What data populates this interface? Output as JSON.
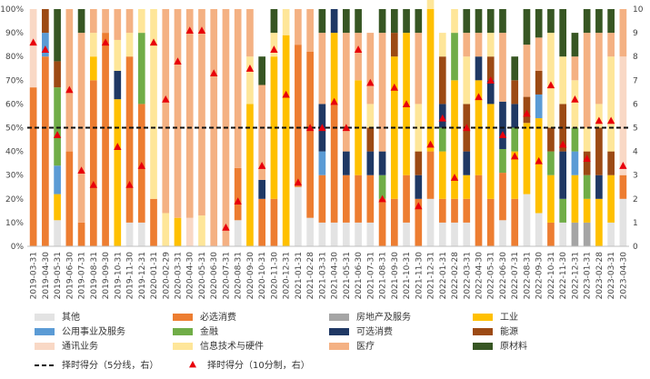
{
  "chart_data": {
    "type": "bar",
    "stacked": true,
    "percent": true,
    "y_left": {
      "min": 0,
      "max": 100,
      "unit": "%",
      "ticks": [
        "0%",
        "10%",
        "20%",
        "30%",
        "40%",
        "50%",
        "60%",
        "70%",
        "80%",
        "90%",
        "100%"
      ]
    },
    "y_right": {
      "min": 0,
      "max": 10,
      "ticks": [
        "0",
        "1",
        "2",
        "3",
        "4",
        "5",
        "6",
        "7",
        "8",
        "9",
        "10"
      ]
    },
    "categories": [
      "2019-03-31",
      "2019-04-30",
      "2019-05-31",
      "2019-06-30",
      "2019-07-31",
      "2019-08-31",
      "2019-09-30",
      "2019-10-31",
      "2019-11-30",
      "2019-12-31",
      "2020-01-31",
      "2020-02-29",
      "2020-03-31",
      "2020-04-30",
      "2020-05-31",
      "2020-06-30",
      "2020-07-31",
      "2020-08-31",
      "2020-09-30",
      "2020-10-31",
      "2020-11-30",
      "2020-12-31",
      "2021-01-31",
      "2021-02-28",
      "2021-03-31",
      "2021-04-30",
      "2021-05-31",
      "2021-06-30",
      "2021-07-31",
      "2021-08-31",
      "2021-09-30",
      "2021-10-31",
      "2021-11-30",
      "2021-12-31",
      "2022-01-31",
      "2022-02-28",
      "2022-03-31",
      "2022-04-30",
      "2022-05-31",
      "2022-06-30",
      "2022-07-31",
      "2022-08-31",
      "2022-09-30",
      "2022-10-31",
      "2022-11-30",
      "2022-12-31",
      "2023-01-31",
      "2023-02-28",
      "2023-03-31",
      "2023-04-30"
    ],
    "series": [
      {
        "name": "其他",
        "color": "#e3e3e3",
        "values": [
          0,
          0,
          11,
          0,
          0,
          0,
          0,
          0,
          10,
          10,
          0,
          0,
          0,
          0,
          0,
          0,
          0,
          11,
          0,
          0,
          0,
          0,
          25,
          12,
          10,
          10,
          10,
          10,
          10,
          0,
          0,
          10,
          0,
          20,
          10,
          10,
          10,
          0,
          0,
          11,
          0,
          22,
          14,
          0,
          10,
          0,
          0,
          0,
          10,
          20
        ]
      },
      {
        "name": "必选消费",
        "color": "#ed7d31",
        "values": [
          67,
          80,
          0,
          40,
          10,
          70,
          90,
          0,
          70,
          50,
          20,
          0,
          0,
          0,
          0,
          0,
          0,
          22,
          0,
          20,
          20,
          0,
          60,
          70,
          20,
          50,
          20,
          20,
          20,
          20,
          20,
          20,
          20,
          20,
          10,
          10,
          10,
          30,
          20,
          20,
          20,
          0,
          0,
          10,
          0,
          0,
          0,
          0,
          0,
          10
        ]
      },
      {
        "name": "房地产及服务",
        "color": "#a5a5a5",
        "values": [
          0,
          0,
          0,
          0,
          0,
          0,
          0,
          0,
          0,
          0,
          0,
          0,
          0,
          0,
          0,
          0,
          0,
          0,
          0,
          0,
          0,
          0,
          0,
          0,
          0,
          0,
          0,
          0,
          0,
          0,
          0,
          0,
          0,
          0,
          0,
          0,
          0,
          0,
          0,
          0,
          0,
          0,
          0,
          0,
          0,
          10,
          10,
          0,
          0,
          0
        ]
      },
      {
        "name": "工业",
        "color": "#ffc000",
        "values": [
          0,
          0,
          11,
          0,
          0,
          10,
          0,
          62,
          0,
          0,
          0,
          0,
          12,
          0,
          0,
          0,
          0,
          0,
          60,
          0,
          60,
          89,
          0,
          0,
          0,
          30,
          0,
          40,
          0,
          0,
          60,
          60,
          0,
          60,
          20,
          50,
          10,
          40,
          40,
          0,
          20,
          30,
          40,
          20,
          0,
          20,
          10,
          20,
          20,
          0
        ]
      },
      {
        "name": "公用事业及服务",
        "color": "#5b9bd5",
        "values": [
          0,
          10,
          12,
          0,
          0,
          0,
          0,
          0,
          0,
          0,
          0,
          0,
          0,
          0,
          0,
          0,
          0,
          0,
          0,
          0,
          0,
          0,
          0,
          0,
          10,
          0,
          0,
          0,
          0,
          0,
          0,
          0,
          0,
          0,
          0,
          0,
          0,
          0,
          0,
          0,
          0,
          0,
          10,
          0,
          0,
          10,
          0,
          0,
          0,
          0
        ]
      },
      {
        "name": "金融",
        "color": "#70ad47",
        "values": [
          0,
          0,
          33,
          0,
          0,
          0,
          0,
          0,
          0,
          30,
          0,
          0,
          0,
          0,
          0,
          0,
          0,
          0,
          0,
          0,
          0,
          0,
          0,
          0,
          0,
          0,
          0,
          0,
          0,
          10,
          0,
          0,
          0,
          0,
          10,
          20,
          0,
          0,
          0,
          10,
          10,
          0,
          0,
          10,
          10,
          10,
          10,
          0,
          0,
          0
        ]
      },
      {
        "name": "可选消费",
        "color": "#1f3864",
        "values": [
          0,
          0,
          0,
          0,
          0,
          0,
          0,
          12,
          0,
          0,
          0,
          0,
          0,
          0,
          0,
          0,
          0,
          0,
          0,
          8,
          0,
          0,
          0,
          0,
          20,
          10,
          10,
          0,
          10,
          10,
          0,
          0,
          10,
          0,
          10,
          0,
          10,
          10,
          10,
          20,
          10,
          0,
          0,
          0,
          20,
          0,
          0,
          10,
          0,
          0
        ]
      },
      {
        "name": "能源",
        "color": "#9c4a14",
        "values": [
          0,
          10,
          11,
          0,
          0,
          0,
          0,
          0,
          0,
          0,
          0,
          0,
          0,
          0,
          0,
          0,
          0,
          0,
          0,
          0,
          0,
          0,
          0,
          0,
          0,
          0,
          0,
          0,
          10,
          0,
          10,
          0,
          10,
          0,
          20,
          0,
          20,
          0,
          10,
          0,
          10,
          11,
          10,
          10,
          20,
          0,
          10,
          20,
          10,
          0
        ]
      },
      {
        "name": "通讯业务",
        "color": "#f9d8c5",
        "values": [
          33,
          0,
          0,
          0,
          0,
          0,
          0,
          0,
          0,
          0,
          0,
          0,
          0,
          12,
          0,
          0,
          0,
          0,
          0,
          0,
          0,
          0,
          0,
          0,
          0,
          0,
          0,
          0,
          0,
          0,
          0,
          0,
          0,
          0,
          0,
          0,
          0,
          0,
          0,
          0,
          0,
          0,
          0,
          0,
          0,
          0,
          0,
          0,
          0,
          50
        ]
      },
      {
        "name": "信息技术与硬件",
        "color": "#fee699",
        "values": [
          0,
          0,
          0,
          0,
          0,
          10,
          0,
          13,
          10,
          10,
          80,
          14,
          0,
          0,
          13,
          0,
          0,
          0,
          20,
          0,
          10,
          11,
          0,
          0,
          0,
          0,
          0,
          0,
          10,
          0,
          0,
          0,
          20,
          10,
          10,
          10,
          20,
          0,
          10,
          0,
          0,
          0,
          0,
          40,
          20,
          20,
          10,
          10,
          40,
          0
        ]
      },
      {
        "name": "医疗",
        "color": "#f4b183",
        "values": [
          0,
          0,
          0,
          60,
          80,
          10,
          10,
          13,
          10,
          0,
          0,
          86,
          88,
          88,
          87,
          100,
          100,
          67,
          20,
          40,
          0,
          0,
          15,
          18,
          30,
          0,
          50,
          20,
          30,
          50,
          0,
          0,
          30,
          0,
          0,
          0,
          10,
          10,
          0,
          29,
          0,
          22,
          14,
          0,
          0,
          10,
          40,
          30,
          10,
          20
        ]
      },
      {
        "name": "原材料",
        "color": "#375623",
        "values": [
          0,
          0,
          22,
          0,
          10,
          0,
          0,
          0,
          0,
          0,
          0,
          0,
          0,
          0,
          0,
          0,
          0,
          0,
          0,
          12,
          10,
          0,
          0,
          0,
          10,
          0,
          10,
          10,
          0,
          10,
          10,
          10,
          10,
          0,
          0,
          0,
          10,
          10,
          10,
          10,
          10,
          15,
          12,
          10,
          20,
          10,
          10,
          10,
          10,
          0
        ]
      }
    ],
    "lines": [
      {
        "name": "择时得分（5分线，右）",
        "axis": "right",
        "style": "dashed",
        "color": "#111111",
        "value": 5
      }
    ],
    "markers": [
      {
        "name": "择时得分（10分制，右）",
        "axis": "right",
        "color": "#e8000b",
        "shape": "triangle",
        "values": [
          8.6,
          8.3,
          4.7,
          6.6,
          3.2,
          2.6,
          8.6,
          4.2,
          2.6,
          3.4,
          8.6,
          6.2,
          7.8,
          9.1,
          9.1,
          7.3,
          0.8,
          1.9,
          7.5,
          3.4,
          8.3,
          6.4,
          2.7,
          5.0,
          5.0,
          6.1,
          5.0,
          8.3,
          6.9,
          2.0,
          6.7,
          6.0,
          1.7,
          4.3,
          5.4,
          2.9,
          5.0,
          6.3,
          7.0,
          4.7,
          3.8,
          5.6,
          3.6,
          6.8,
          4.3,
          6.2,
          3.7,
          5.3,
          5.3,
          3.4
        ]
      }
    ],
    "legend_position": "bottom",
    "grid": false
  }
}
